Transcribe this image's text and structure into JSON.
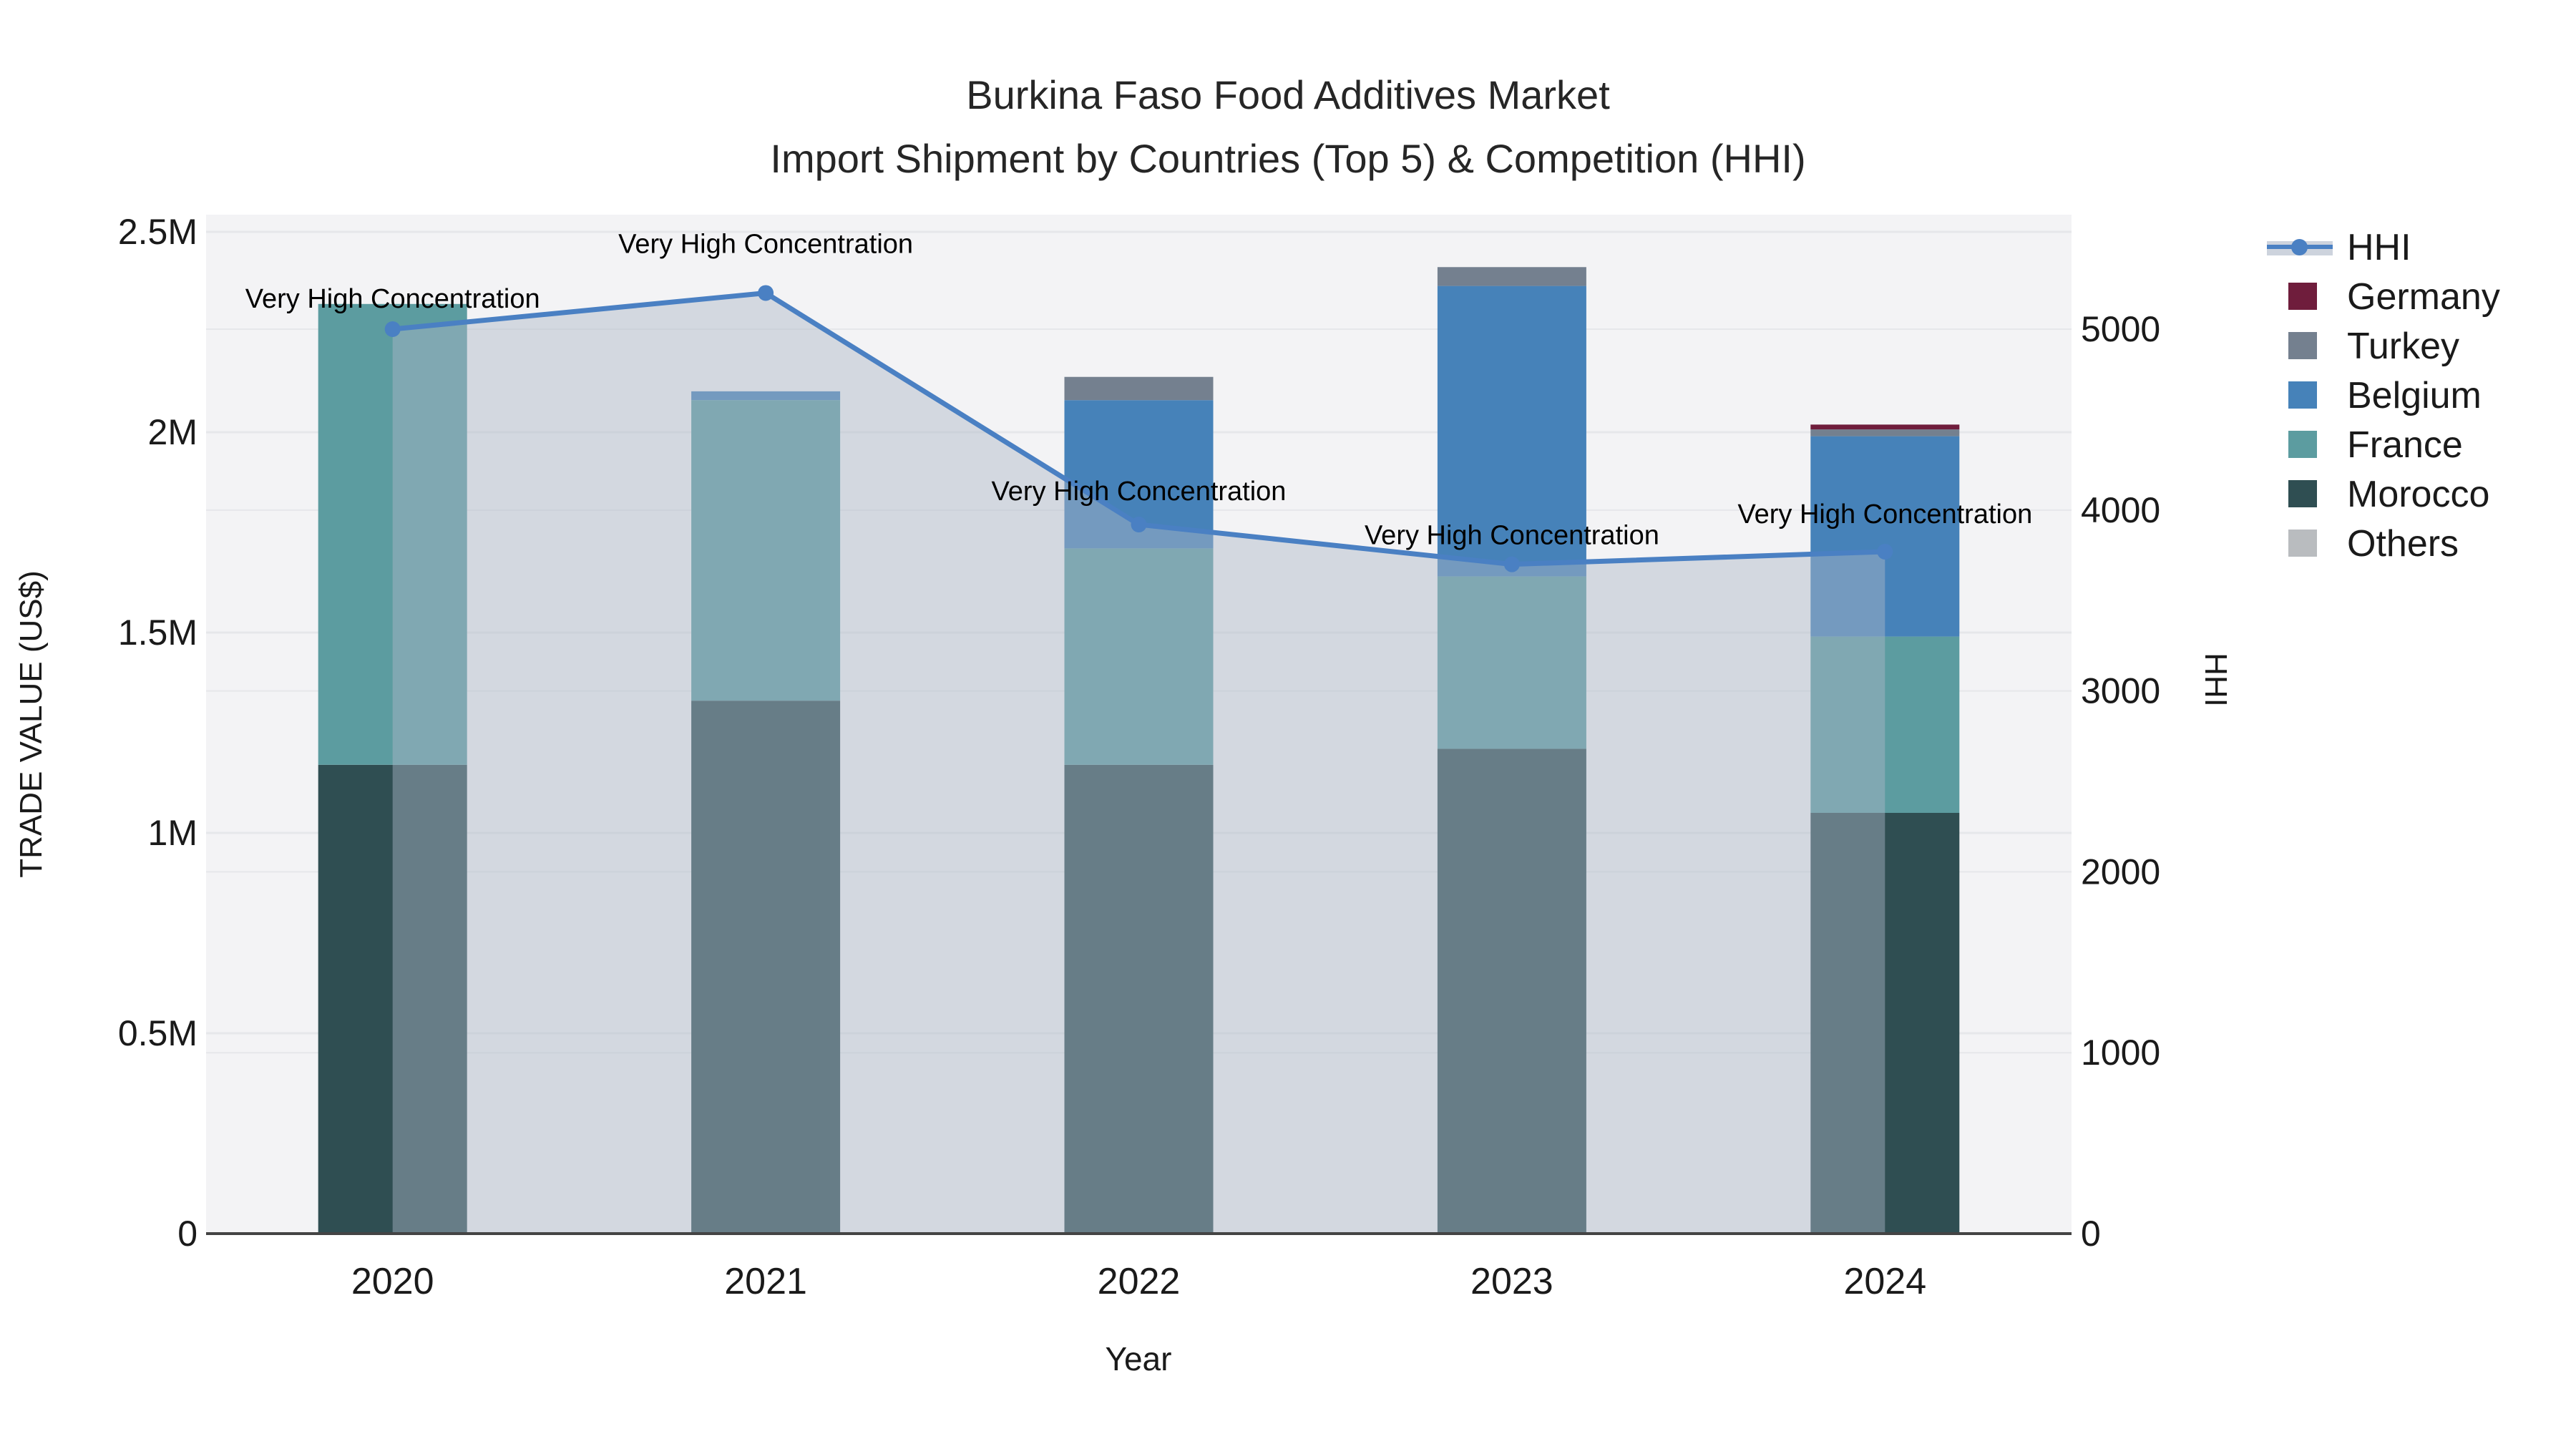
{
  "title": {
    "line1": "Burkina Faso Food Additives Market",
    "line2": "Import Shipment by Countries (Top 5) & Competition (HHI)"
  },
  "axes": {
    "x_title": "Year",
    "y_left_title": "TRADE VALUE (US$)",
    "y_right_title": "HHI",
    "y_left_tick_labels": [
      "0",
      "0.5M",
      "1M",
      "1.5M",
      "2M",
      "2.5M"
    ],
    "y_left_tick_values": [
      0,
      500000,
      1000000,
      1500000,
      2000000,
      2500000
    ],
    "y_right_tick_labels": [
      "0",
      "1000",
      "2000",
      "3000",
      "4000",
      "5000"
    ],
    "y_right_tick_values": [
      0,
      1000,
      2000,
      3000,
      4000,
      5000
    ]
  },
  "chart_data": {
    "type": "bar+line",
    "title": "Burkina Faso Food Additives Market — Import Shipment by Countries (Top 5) & Competition (HHI)",
    "xlabel": "Year",
    "ylabel_left": "TRADE VALUE (US$)",
    "ylabel_right": "HHI",
    "grid": true,
    "legend_position": "right",
    "categories": [
      "2020",
      "2021",
      "2022",
      "2023",
      "2024"
    ],
    "series": [
      {
        "name": "Morocco",
        "type": "bar",
        "values": [
          1170000,
          1330000,
          1170000,
          1210000,
          1050000
        ]
      },
      {
        "name": "France",
        "type": "bar",
        "values": [
          1150000,
          750000,
          540000,
          430000,
          440000
        ]
      },
      {
        "name": "Belgium",
        "type": "bar",
        "values": [
          0,
          22000,
          370000,
          725000,
          500000
        ]
      },
      {
        "name": "Turkey",
        "type": "bar",
        "values": [
          0,
          0,
          58000,
          47000,
          17000
        ]
      },
      {
        "name": "Germany",
        "type": "bar",
        "values": [
          0,
          0,
          0,
          0,
          12000
        ]
      },
      {
        "name": "Others",
        "type": "bar",
        "values": [
          0,
          0,
          0,
          0,
          0
        ]
      }
    ],
    "line_series": {
      "name": "HHI",
      "type": "line",
      "axis": "right",
      "fill": "tozeroy",
      "values": [
        5000,
        5200,
        3920,
        3700,
        3770
      ]
    },
    "annotations": [
      {
        "text": "Very High Concentration",
        "x_index": 0,
        "dy": -43
      },
      {
        "text": "Very High Concentration",
        "x_index": 1,
        "dy": -69
      },
      {
        "text": "Very High Concentration",
        "x_index": 2,
        "dy": -47
      },
      {
        "text": "Very High Concentration",
        "x_index": 3,
        "dy": -41
      },
      {
        "text": "Very High Concentration",
        "x_index": 4,
        "dy": -53
      }
    ],
    "ylim_left": [
      0,
      2542857
    ],
    "ylim_right": [
      0,
      5633
    ]
  },
  "legend": {
    "items": [
      {
        "label": "HHI",
        "type": "line"
      },
      {
        "label": "Germany",
        "type": "square"
      },
      {
        "label": "Turkey",
        "type": "square"
      },
      {
        "label": "Belgium",
        "type": "square"
      },
      {
        "label": "France",
        "type": "square"
      },
      {
        "label": "Morocco",
        "type": "square"
      },
      {
        "label": "Others",
        "type": "square"
      }
    ]
  },
  "colors": {
    "HHI": "#4A80C3",
    "Germany": "#6F1D3C",
    "Turkey": "#74808F",
    "Belgium": "#4682B9",
    "France": "#5C9CA0",
    "Morocco": "#2F4E52",
    "Others": "#B9BCBF",
    "hhi_fill": "rgba(174,184,199,0.45)",
    "plot_bg": "#F3F3F5",
    "grid": "#E6E7EA",
    "axis_line": "#444444",
    "text": "#1A1A1A"
  }
}
